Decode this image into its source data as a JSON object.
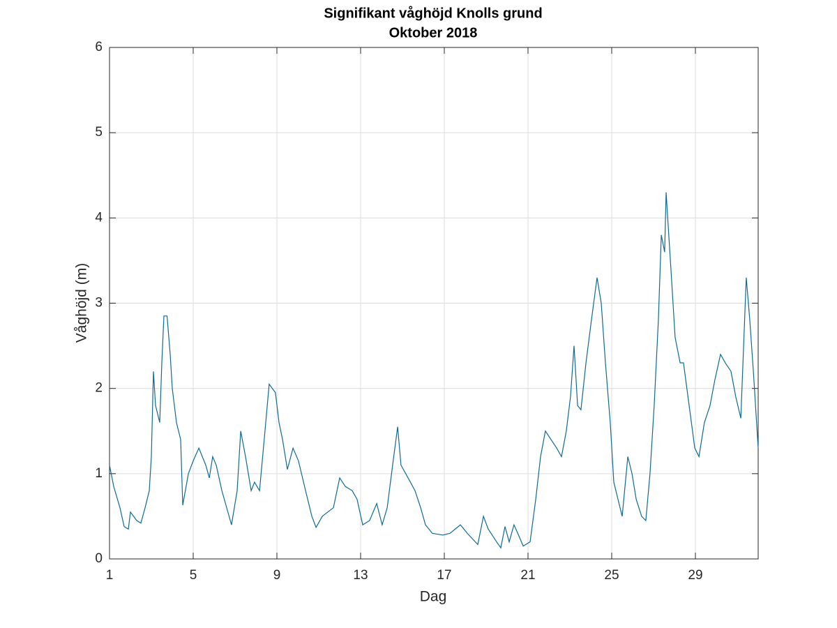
{
  "chart_data": {
    "type": "line",
    "title": "Signifikant våghöjd Knolls grund",
    "subtitle": "Oktober 2018",
    "x_label": "Dag",
    "y_label": "Våghöjd (m)",
    "xlim": [
      1,
      32
    ],
    "xticks": [
      1,
      5,
      9,
      13,
      17,
      21,
      25,
      29
    ],
    "ylim": [
      0,
      6
    ],
    "yticks": [
      0,
      1,
      2,
      3,
      4,
      5,
      6
    ],
    "grid": true,
    "x": [
      1,
      1.2,
      1.5,
      1.7,
      1.9,
      2.0,
      2.3,
      2.5,
      2.7,
      2.9,
      3.0,
      3.1,
      3.2,
      3.4,
      3.5,
      3.6,
      3.75,
      3.9,
      4.0,
      4.2,
      4.4,
      4.5,
      4.77,
      5.0,
      5.27,
      5.6,
      5.77,
      5.93,
      6.1,
      6.37,
      6.83,
      7.1,
      7.27,
      7.5,
      7.77,
      7.93,
      8.17,
      8.43,
      8.63,
      8.93,
      9.1,
      9.27,
      9.5,
      9.77,
      10.03,
      10.37,
      10.67,
      10.87,
      11.17,
      11.43,
      11.7,
      12.0,
      12.27,
      12.6,
      12.83,
      13.1,
      13.43,
      13.77,
      14.03,
      14.27,
      14.53,
      14.77,
      14.93,
      15.27,
      15.6,
      15.87,
      16.1,
      16.43,
      16.93,
      17.27,
      17.77,
      18.1,
      18.6,
      18.87,
      19.1,
      19.5,
      19.7,
      19.9,
      20.1,
      20.33,
      20.6,
      20.77,
      21.1,
      21.37,
      21.6,
      21.83,
      22.1,
      22.37,
      22.6,
      22.83,
      23.03,
      23.2,
      23.37,
      23.53,
      23.77,
      24.03,
      24.3,
      24.5,
      24.7,
      24.93,
      25.1,
      25.3,
      25.5,
      25.77,
      25.97,
      26.17,
      26.43,
      26.63,
      26.83,
      27.03,
      27.23,
      27.37,
      27.53,
      27.6,
      27.83,
      28.03,
      28.27,
      28.43,
      28.7,
      28.97,
      29.17,
      29.43,
      29.7,
      29.93,
      30.2,
      30.43,
      30.7,
      30.93,
      31.17,
      31.43,
      31.6,
      31.77,
      32
    ],
    "series": [
      {
        "name": "Våghöjd",
        "color": "#0b6b96",
        "values": [
          1.1,
          0.85,
          0.6,
          0.38,
          0.35,
          0.55,
          0.45,
          0.42,
          0.6,
          0.8,
          1.2,
          2.2,
          1.8,
          1.6,
          2.3,
          2.85,
          2.85,
          2.4,
          2.0,
          1.6,
          1.4,
          0.63,
          1.0,
          1.15,
          1.3,
          1.1,
          0.95,
          1.2,
          1.1,
          0.8,
          0.4,
          0.8,
          1.5,
          1.2,
          0.8,
          0.9,
          0.8,
          1.5,
          2.05,
          1.95,
          1.6,
          1.4,
          1.05,
          1.3,
          1.15,
          0.8,
          0.5,
          0.37,
          0.5,
          0.55,
          0.6,
          0.95,
          0.85,
          0.8,
          0.7,
          0.4,
          0.45,
          0.65,
          0.4,
          0.6,
          1.1,
          1.55,
          1.1,
          0.95,
          0.8,
          0.6,
          0.4,
          0.3,
          0.28,
          0.3,
          0.4,
          0.3,
          0.17,
          0.5,
          0.35,
          0.2,
          0.13,
          0.38,
          0.2,
          0.4,
          0.25,
          0.15,
          0.2,
          0.7,
          1.2,
          1.5,
          1.4,
          1.3,
          1.2,
          1.5,
          1.9,
          2.5,
          1.8,
          1.75,
          2.3,
          2.8,
          3.3,
          3.0,
          2.3,
          1.6,
          0.9,
          0.7,
          0.5,
          1.2,
          1.0,
          0.7,
          0.5,
          0.45,
          1.0,
          1.8,
          2.8,
          3.8,
          3.6,
          4.3,
          3.4,
          2.6,
          2.3,
          2.3,
          1.8,
          1.3,
          1.2,
          1.6,
          1.8,
          2.1,
          2.4,
          2.3,
          2.2,
          1.9,
          1.65,
          3.3,
          2.8,
          2.2,
          1.3
        ]
      }
    ]
  }
}
